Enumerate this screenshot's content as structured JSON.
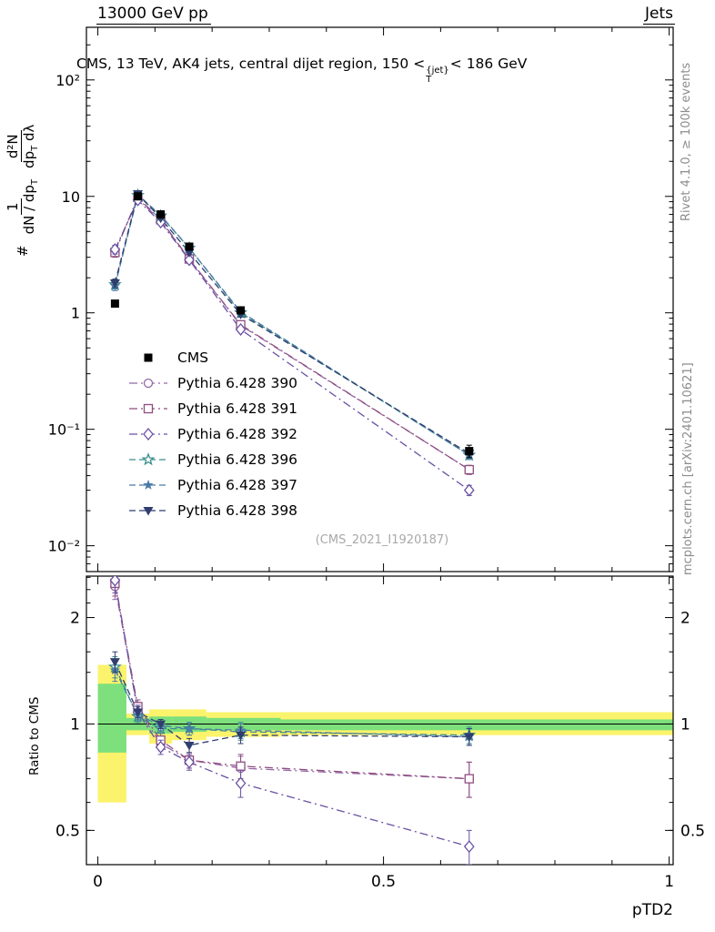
{
  "header": {
    "left": "13000 GeV pp",
    "right": "Jets"
  },
  "title": {
    "pre": "CMS, 13 TeV, AK4 jets, central dijet region, 150 <",
    "p": "p",
    "sup": "{jet}",
    "sub": "T",
    "post": "< 186 GeV"
  },
  "y_axis": {
    "prefix": "#",
    "f1_num": "1",
    "f1_den_main": "dN / dp",
    "f1_den_sub": "T",
    "f2_num": "d²N",
    "f2_den_main": "dp",
    "f2_den_sub": "T",
    "f2_den_tail": " dλ"
  },
  "watermark": "(CMS_2021_I1920187)",
  "side_notes": {
    "top": "Rivet 4.1.0, ≥ 100k events",
    "bottom": "mcplots.cern.ch [arXiv:2401.10621]"
  },
  "ratio_ylabel": "Ratio to CMS",
  "xlabel": "pTD2",
  "chart_data": {
    "type": "line",
    "title": "CMS, 13 TeV, AK4 jets, central dijet region, 150 < pT{jet} < 186 GeV",
    "xlabel": "pTD2",
    "ylabel": "1/(dN/dpT) d²N/(dpT dλ)",
    "x": [
      0.03,
      0.07,
      0.11,
      0.16,
      0.25,
      0.65
    ],
    "xticks": [
      {
        "v": 0,
        "label": "0"
      },
      {
        "v": 0.5,
        "label": "0.5"
      },
      {
        "v": 1,
        "label": "1"
      }
    ],
    "xlim": [
      0,
      1
    ],
    "main_ylim": [
      0.006,
      283
    ],
    "main_yticks": [
      {
        "v": 0.01,
        "label": "10⁻²"
      },
      {
        "v": 0.1,
        "label": "10⁻¹"
      },
      {
        "v": 1,
        "label": "1"
      },
      {
        "v": 10,
        "label": "10"
      },
      {
        "v": 100,
        "label": "10²"
      }
    ],
    "ratio": {
      "ylim": [
        0.4,
        2.62
      ],
      "yticks": [
        {
          "v": 0.5,
          "label": "0.5"
        },
        {
          "v": 1,
          "label": "1"
        },
        {
          "v": 2,
          "label": "2"
        }
      ],
      "ref_line": 1,
      "band_colors": {
        "yellow": "#fbf36b",
        "green": "#7de07d"
      },
      "bands": {
        "bins": [
          [
            0.0,
            0.05
          ],
          [
            0.05,
            0.09
          ],
          [
            0.09,
            0.13
          ],
          [
            0.13,
            0.19
          ],
          [
            0.19,
            0.32
          ],
          [
            0.32,
            1.0
          ]
        ],
        "yellow": [
          [
            0.6,
            1.47
          ],
          [
            0.93,
            1.07
          ],
          [
            0.88,
            1.1
          ],
          [
            0.9,
            1.1
          ],
          [
            0.92,
            1.08
          ],
          [
            0.93,
            1.08
          ]
        ],
        "green": [
          [
            0.83,
            1.3
          ],
          [
            0.96,
            1.04
          ],
          [
            0.94,
            1.05
          ],
          [
            0.95,
            1.05
          ],
          [
            0.96,
            1.04
          ],
          [
            0.96,
            1.03
          ]
        ]
      }
    },
    "series": [
      {
        "name": "CMS",
        "color": "#000000",
        "marker": "square-filled",
        "line": "none",
        "values": [
          1.2,
          10,
          7,
          3.7,
          1.05,
          0.065
        ],
        "yerr": [
          0.08,
          0.4,
          0.3,
          0.18,
          0.07,
          0.008
        ]
      },
      {
        "name": "Pythia 6.428 390",
        "color": "#9468a5",
        "marker": "circle-open",
        "line": "dashdot",
        "values": [
          3.4,
          9.5,
          6.2,
          2.9,
          0.78,
          0.045
        ],
        "yerr": [
          0.3,
          0.25,
          0.18,
          0.1,
          0.04,
          0.004
        ],
        "ratio": [
          2.45,
          1.1,
          0.88,
          0.79,
          0.75,
          0.7
        ],
        "ratio_err": [
          0.2,
          0.05,
          0.04,
          0.04,
          0.06,
          0.08
        ]
      },
      {
        "name": "Pythia 6.428 391",
        "color": "#8f4d80",
        "marker": "square-open",
        "line": "dashdot",
        "values": [
          3.3,
          9.8,
          6.3,
          2.9,
          0.79,
          0.045
        ],
        "yerr": [
          0.3,
          0.25,
          0.18,
          0.1,
          0.04,
          0.004
        ],
        "ratio": [
          2.5,
          1.12,
          0.9,
          0.79,
          0.76,
          0.7
        ],
        "ratio_err": [
          0.2,
          0.05,
          0.04,
          0.04,
          0.06,
          0.08
        ]
      },
      {
        "name": "Pythia 6.428 392",
        "color": "#6a51a3",
        "marker": "diamond-open",
        "line": "dashdot",
        "values": [
          3.5,
          9.3,
          6.0,
          2.85,
          0.72,
          0.03
        ],
        "yerr": [
          0.3,
          0.25,
          0.18,
          0.1,
          0.04,
          0.003
        ],
        "ratio": [
          2.55,
          1.08,
          0.86,
          0.78,
          0.68,
          0.45
        ],
        "ratio_err": [
          0.2,
          0.05,
          0.04,
          0.04,
          0.06,
          0.05
        ]
      },
      {
        "name": "Pythia 6.428 396",
        "color": "#3c8d8d",
        "marker": "star-open",
        "line": "dashed",
        "values": [
          1.75,
          10.2,
          6.8,
          3.6,
          1.0,
          0.06
        ],
        "yerr": [
          0.15,
          0.25,
          0.18,
          0.1,
          0.05,
          0.005
        ],
        "ratio": [
          1.45,
          1.05,
          0.97,
          0.97,
          0.95,
          0.93
        ],
        "ratio_err": [
          0.1,
          0.04,
          0.03,
          0.04,
          0.05,
          0.05
        ]
      },
      {
        "name": "Pythia 6.428 397",
        "color": "#4a7ba6",
        "marker": "star-filled",
        "line": "dashed",
        "values": [
          1.7,
          10.3,
          6.9,
          3.6,
          1.02,
          0.06
        ],
        "yerr": [
          0.15,
          0.25,
          0.18,
          0.1,
          0.05,
          0.005
        ],
        "ratio": [
          1.42,
          1.06,
          0.99,
          0.97,
          0.96,
          0.92
        ],
        "ratio_err": [
          0.1,
          0.04,
          0.03,
          0.04,
          0.05,
          0.05
        ]
      },
      {
        "name": "Pythia 6.428 398",
        "color": "#2f3e6e",
        "marker": "triangle-down-filled",
        "line": "dashed",
        "values": [
          1.8,
          10.5,
          6.5,
          3.3,
          0.97,
          0.062
        ],
        "yerr": [
          0.15,
          0.25,
          0.18,
          0.1,
          0.05,
          0.005
        ],
        "ratio": [
          1.5,
          1.08,
          1.0,
          0.87,
          0.93,
          0.92
        ],
        "ratio_err": [
          0.1,
          0.04,
          0.03,
          0.04,
          0.05,
          0.05
        ]
      }
    ]
  }
}
